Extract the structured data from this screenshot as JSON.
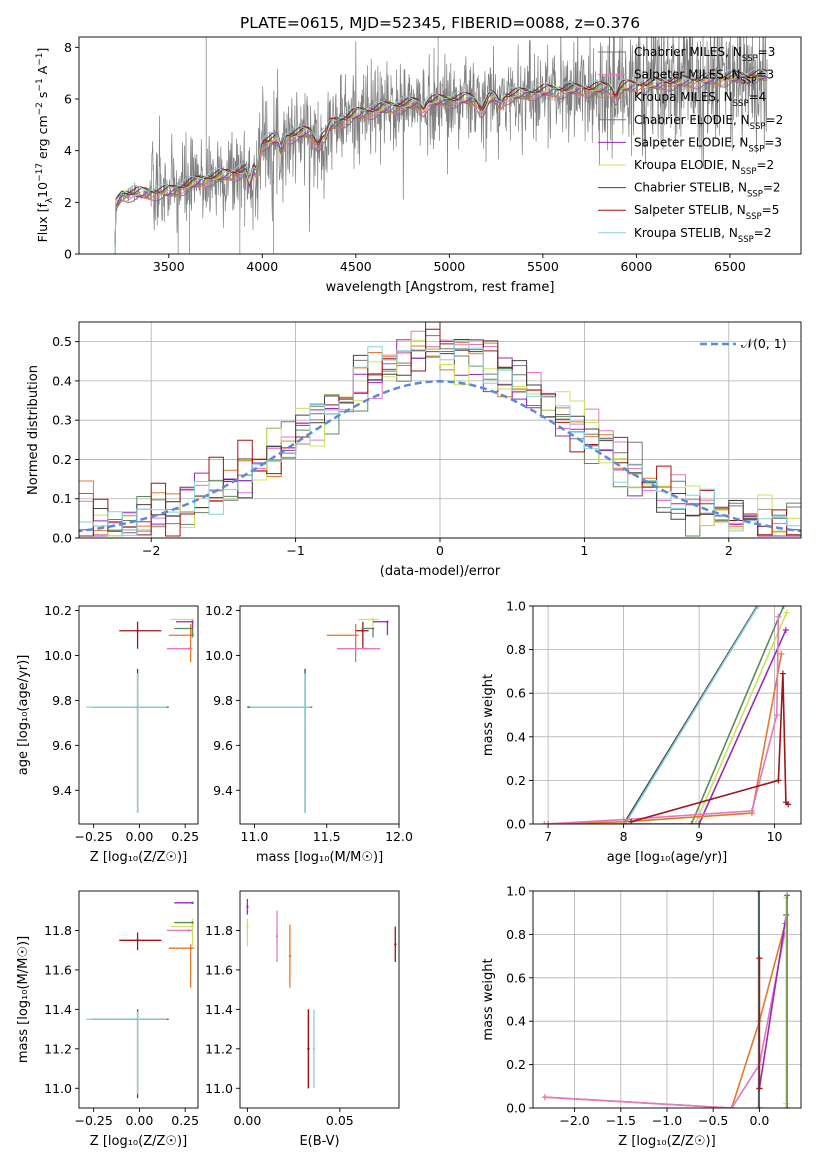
{
  "figure_title": "PLATE=0615, MJD=52345, FIBERID=0088, z=0.376",
  "palette": {
    "Chabrier MILES": "#777777",
    "Salpeter MILES": "#e377c2",
    "Kroupa MILES": "#e07a2a",
    "Chabrier ELODIE": "#5c8a5c",
    "Salpeter ELODIE": "#9a2ab8",
    "Kroupa ELODIE": "#cfe05a",
    "Chabrier STELIB": "#444444",
    "Salpeter STELIB": "#a01515",
    "Kroupa STELIB": "#86d2de",
    "normal": "#5b8bd6"
  },
  "chart_data": [
    {
      "type": "line",
      "title": "PLATE=0615, MJD=52345, FIBERID=0088, z=0.376",
      "xlabel": "wavelength [Angstrom, rest frame]",
      "ylabel": "Flux [f$_\\lambda$10$^{-17}$ erg cm$^{-2}$ s$^{-1}$ A$^{-1}$]",
      "ylabel_parts": [
        "Flux [f",
        "λ",
        "10",
        "−17",
        " erg cm",
        "−2",
        " s",
        "−1",
        " A",
        "−1",
        "]"
      ],
      "xlim": [
        3020,
        6880
      ],
      "ylim": [
        0,
        8.4
      ],
      "xticks": [
        3500,
        4000,
        4500,
        5000,
        5500,
        6000,
        6500
      ],
      "yticks": [
        0,
        2,
        4,
        6,
        8
      ],
      "legend_position": "top-right",
      "legend": [
        {
          "model": "Chabrier MILES",
          "nssp": "3"
        },
        {
          "model": "Salpeter MILES",
          "nssp": "3"
        },
        {
          "model": "Kroupa MILES",
          "nssp": "4"
        },
        {
          "model": "Chabrier ELODIE",
          "nssp": "2"
        },
        {
          "model": "Salpeter ELODIE",
          "nssp": "3"
        },
        {
          "model": "Kroupa ELODIE",
          "nssp": "2"
        },
        {
          "model": "Chabrier STELIB",
          "nssp": "2"
        },
        {
          "model": "Salpeter STELIB",
          "nssp": "5"
        },
        {
          "model": "Kroupa STELIB",
          "nssp": "2"
        }
      ],
      "nssp_label": "N",
      "nssp_sub": "SSP",
      "continuum": {
        "x": [
          3200,
          3250,
          3500,
          3700,
          3900,
          4000,
          4100,
          4300,
          4500,
          4700,
          4900,
          5100,
          5300,
          5500,
          5800,
          6000,
          6300,
          6500,
          6700
        ],
        "y": [
          1.7,
          2.3,
          2.4,
          2.9,
          3.2,
          4.3,
          4.5,
          4.8,
          5.4,
          5.7,
          5.9,
          6.0,
          6.1,
          6.3,
          6.4,
          6.5,
          6.7,
          6.8,
          6.9
        ]
      }
    },
    {
      "type": "histogram",
      "xlabel": "(data-model)/error",
      "ylabel": "Normed distribution",
      "xlim": [
        -2.5,
        2.5
      ],
      "ylim": [
        0,
        0.55
      ],
      "xticks": [
        -2,
        -1,
        0,
        1,
        2
      ],
      "yticks": [
        0,
        0.1,
        0.2,
        0.3,
        0.4,
        0.5
      ],
      "legend_position": "top-right",
      "legend_label": "𝒩(0, 1)",
      "bin_width": 0.1
    },
    {
      "type": "scatter",
      "xlabel": "Z [log₁₀(Z/Z☉)]",
      "ylabel": "age  [log₁₀(age/yr)]",
      "xlim": [
        -0.33,
        0.32
      ],
      "ylim": [
        9.25,
        10.22
      ],
      "xticks": [
        -0.25,
        0.0,
        0.25
      ],
      "xtick_labels": [
        "−0.25",
        "0.00",
        "0.25"
      ],
      "yticks": [
        9.4,
        9.6,
        9.8,
        10.0,
        10.2
      ],
      "ytick_labels": [
        "9.4",
        "9.6",
        "9.8",
        "10.0",
        "10.2"
      ],
      "points": [
        {
          "model": "Chabrier STELIB",
          "x": -0.01,
          "y": 9.77,
          "xerr": [
            0.25,
            0.17
          ],
          "yerr": [
            0.47,
            0.17
          ]
        },
        {
          "model": "Kroupa STELIB",
          "x": -0.01,
          "y": 9.77,
          "xerr": [
            0.28,
            0.16
          ],
          "yerr": [
            0.47,
            0.15
          ]
        },
        {
          "model": "Salpeter STELIB",
          "x": -0.01,
          "y": 10.11,
          "xerr": [
            0.1,
            0.13
          ],
          "yerr": [
            0.08,
            0.04
          ]
        },
        {
          "model": "Kroupa ELODIE",
          "x": 0.29,
          "y": 10.16,
          "xerr": [
            0.12,
            0.0
          ],
          "yerr": [
            0.03,
            0.0
          ]
        },
        {
          "model": "Salpeter ELODIE",
          "x": 0.29,
          "y": 10.15,
          "xerr": [
            0.09,
            0.0
          ],
          "yerr": [
            0.06,
            0.0
          ]
        },
        {
          "model": "Kroupa MILES",
          "x": 0.28,
          "y": 10.09,
          "xerr": [
            0.12,
            0.02
          ],
          "yerr": [
            0.12,
            0.05
          ]
        },
        {
          "model": "Salpeter MILES",
          "x": 0.27,
          "y": 10.03,
          "xerr": [
            0.12,
            0.02
          ],
          "yerr": [
            0.0,
            0.0
          ]
        },
        {
          "model": "Chabrier ELODIE",
          "x": 0.29,
          "y": 10.12,
          "xerr": [
            0.1,
            0.0
          ],
          "yerr": [
            0.04,
            0.0
          ]
        }
      ]
    },
    {
      "type": "scatter",
      "xlabel": "mass [log₁₀(M/M☉)]",
      "xlim": [
        10.9,
        12.0
      ],
      "ylim": [
        9.25,
        10.22
      ],
      "xticks": [
        11.0,
        11.5,
        12.0
      ],
      "xtick_labels": [
        "11.0",
        "11.5",
        "12.0"
      ],
      "yticks": [
        9.4,
        9.6,
        9.8,
        10.0,
        10.2
      ],
      "ytick_labels": [
        "9.4",
        "9.6",
        "9.8",
        "10.0",
        "10.2"
      ],
      "points": [
        {
          "model": "Chabrier STELIB",
          "x": 11.35,
          "y": 9.77,
          "xerr": [
            0.4,
            0.05
          ],
          "yerr": [
            0.47,
            0.17
          ]
        },
        {
          "model": "Kroupa STELIB",
          "x": 11.35,
          "y": 9.77,
          "xerr": [
            0.38,
            0.04
          ],
          "yerr": [
            0.47,
            0.15
          ]
        },
        {
          "model": "Salpeter STELIB",
          "x": 11.75,
          "y": 10.11,
          "xerr": [
            0.05,
            0.04
          ],
          "yerr": [
            0.08,
            0.04
          ]
        },
        {
          "model": "Kroupa ELODIE",
          "x": 11.82,
          "y": 10.16,
          "xerr": [
            0.1,
            0.04
          ],
          "yerr": [
            0.03,
            0.0
          ]
        },
        {
          "model": "Salpeter ELODIE",
          "x": 11.92,
          "y": 10.15,
          "xerr": [
            0.1,
            0.0
          ],
          "yerr": [
            0.06,
            0.0
          ]
        },
        {
          "model": "Kroupa MILES",
          "x": 11.7,
          "y": 10.09,
          "xerr": [
            0.2,
            0.02
          ],
          "yerr": [
            0.12,
            0.05
          ]
        },
        {
          "model": "Salpeter MILES",
          "x": 11.77,
          "y": 10.03,
          "xerr": [
            0.2,
            0.1
          ],
          "yerr": [
            0.0,
            0.0
          ]
        },
        {
          "model": "Chabrier ELODIE",
          "x": 11.82,
          "y": 10.12,
          "xerr": [
            0.08,
            0.0
          ],
          "yerr": [
            0.04,
            0.0
          ]
        }
      ]
    },
    {
      "type": "line",
      "xlabel": "age  [log₁₀(age/yr)]",
      "ylabel": "mass weight",
      "xlim": [
        6.8,
        10.35
      ],
      "ylim": [
        0,
        1.0
      ],
      "xticks": [
        7,
        8,
        9,
        10
      ],
      "yticks": [
        0,
        0.2,
        0.4,
        0.6,
        0.8,
        1.0
      ],
      "ytick_labels": [
        "0.0",
        "0.2",
        "0.4",
        "0.6",
        "0.8",
        "1.0"
      ],
      "series": [
        {
          "model": "Chabrier STELIB",
          "x": [
            8.0,
            9.77
          ],
          "y": [
            0.0,
            1.0
          ]
        },
        {
          "model": "Kroupa STELIB",
          "x": [
            8.02,
            9.78
          ],
          "y": [
            0.0,
            1.0
          ]
        },
        {
          "model": "Chabrier ELODIE",
          "x": [
            8.9,
            10.12
          ],
          "y": [
            0.0,
            1.0
          ]
        },
        {
          "model": "Kroupa ELODIE",
          "x": [
            8.95,
            10.16
          ],
          "y": [
            0.0,
            0.97
          ]
        },
        {
          "model": "Salpeter ELODIE",
          "x": [
            7.0,
            9.0,
            10.15
          ],
          "y": [
            0.0,
            0.0,
            0.89
          ]
        },
        {
          "model": "Kroupa MILES",
          "x": [
            7.0,
            8.0,
            9.7,
            10.09
          ],
          "y": [
            0.0,
            0.01,
            0.05,
            0.78
          ]
        },
        {
          "model": "Salpeter MILES",
          "x": [
            6.95,
            8.0,
            9.7,
            10.03,
            10.05
          ],
          "y": [
            0.0,
            0.02,
            0.06,
            0.5,
            0.95
          ]
        },
        {
          "model": "Salpeter STELIB",
          "x": [
            8.1,
            10.05,
            10.11,
            10.15,
            10.18
          ],
          "y": [
            0.01,
            0.2,
            0.69,
            0.1,
            0.09
          ]
        }
      ]
    },
    {
      "type": "scatter",
      "xlabel": "Z [log₁₀(Z/Z☉)]",
      "ylabel": "mass [log₁₀(M/M☉)]",
      "xlim": [
        -0.33,
        0.32
      ],
      "ylim": [
        10.9,
        12.0
      ],
      "xticks": [
        -0.25,
        0.0,
        0.25
      ],
      "xtick_labels": [
        "−0.25",
        "0.00",
        "0.25"
      ],
      "yticks": [
        11.0,
        11.2,
        11.4,
        11.6,
        11.8
      ],
      "ytick_labels": [
        "11.0",
        "11.2",
        "11.4",
        "11.6",
        "11.8"
      ],
      "points": [
        {
          "model": "Chabrier STELIB",
          "x": -0.01,
          "y": 11.35,
          "xerr": [
            0.25,
            0.17
          ],
          "yerr": [
            0.4,
            0.05
          ]
        },
        {
          "model": "Kroupa STELIB",
          "x": -0.01,
          "y": 11.35,
          "xerr": [
            0.28,
            0.16
          ],
          "yerr": [
            0.38,
            0.04
          ]
        },
        {
          "model": "Salpeter STELIB",
          "x": -0.01,
          "y": 11.75,
          "xerr": [
            0.1,
            0.13
          ],
          "yerr": [
            0.05,
            0.04
          ]
        },
        {
          "model": "Salpeter ELODIE",
          "x": 0.29,
          "y": 11.94,
          "xerr": [
            0.1,
            0.0
          ],
          "yerr": [
            0.0,
            0.0
          ]
        },
        {
          "model": "Kroupa ELODIE",
          "x": 0.29,
          "y": 11.82,
          "xerr": [
            0.12,
            0.0
          ],
          "yerr": [
            0.1,
            0.04
          ]
        },
        {
          "model": "Salpeter MILES",
          "x": 0.27,
          "y": 11.8,
          "xerr": [
            0.12,
            0.02
          ],
          "yerr": [
            0.0,
            0.0
          ]
        },
        {
          "model": "Kroupa MILES",
          "x": 0.28,
          "y": 11.71,
          "xerr": [
            0.12,
            0.02
          ],
          "yerr": [
            0.2,
            0.02
          ]
        },
        {
          "model": "Chabrier ELODIE",
          "x": 0.29,
          "y": 11.84,
          "xerr": [
            0.1,
            0.0
          ],
          "yerr": [
            0.0,
            0.0
          ]
        }
      ]
    },
    {
      "type": "scatter",
      "xlabel": "E(B-V)",
      "xlim": [
        -0.004,
        0.082
      ],
      "ylim": [
        10.9,
        12.0
      ],
      "xticks": [
        0.0,
        0.05
      ],
      "xtick_labels": [
        "0.00",
        "0.05"
      ],
      "yticks": [
        11.0,
        11.2,
        11.4,
        11.6,
        11.8
      ],
      "ytick_labels": [
        "11.0",
        "11.2",
        "11.4",
        "11.6",
        "11.8"
      ],
      "points": [
        {
          "model": "Salpeter ELODIE",
          "x": 0.0,
          "y": 11.92,
          "yerr": [
            0.04,
            0.04
          ]
        },
        {
          "model": "Kroupa ELODIE",
          "x": 0.0,
          "y": 11.82,
          "yerr": [
            0.1,
            0.04
          ]
        },
        {
          "model": "Salpeter MILES",
          "x": 0.016,
          "y": 11.77,
          "yerr": [
            0.13,
            0.13
          ]
        },
        {
          "model": "Kroupa MILES",
          "x": 0.023,
          "y": 11.67,
          "yerr": [
            0.16,
            0.16
          ]
        },
        {
          "model": "Chabrier STELIB",
          "x": 0.033,
          "y": 11.2,
          "yerr": [
            0.2,
            0.2
          ]
        },
        {
          "model": "Salpeter STELIB",
          "x": 0.033,
          "y": 11.2,
          "yerr": [
            0.2,
            0.2
          ]
        },
        {
          "model": "Kroupa STELIB",
          "x": 0.036,
          "y": 11.2,
          "yerr": [
            0.2,
            0.2
          ]
        },
        {
          "model": "Salpeter STELIB",
          "x": 0.08,
          "y": 11.73,
          "yerr": [
            0.09,
            0.09
          ]
        }
      ]
    },
    {
      "type": "line",
      "xlabel": "Z [log₁₀(Z/Z☉)]",
      "ylabel": "mass weight",
      "xlim": [
        -2.45,
        0.45
      ],
      "ylim": [
        0,
        1.0
      ],
      "xticks": [
        -2.0,
        -1.5,
        -1.0,
        -0.5,
        0.0
      ],
      "xtick_labels": [
        "−2.0",
        "−1.5",
        "−1.0",
        "−0.5",
        "0.0"
      ],
      "yticks": [
        0,
        0.2,
        0.4,
        0.6,
        0.8,
        1.0
      ],
      "ytick_labels": [
        "0.0",
        "0.2",
        "0.4",
        "0.6",
        "0.8",
        "1.0"
      ],
      "series": [
        {
          "model": "Kroupa MILES",
          "x": [
            -2.32,
            -0.3,
            0.0,
            0.28
          ],
          "y": [
            0.05,
            0.0,
            0.4,
            0.85
          ]
        },
        {
          "model": "Salpeter MILES",
          "x": [
            -2.32,
            -0.3,
            0.0,
            0.27
          ],
          "y": [
            0.05,
            0.0,
            0.2,
            0.8
          ]
        },
        {
          "model": "Salpeter ELODIE",
          "x": [
            0.0,
            0.29
          ],
          "y": [
            0.09,
            0.89
          ]
        },
        {
          "model": "Kroupa STELIB",
          "x": [
            -0.01,
            -0.01
          ],
          "y": [
            0.0,
            1.0
          ]
        },
        {
          "model": "Chabrier STELIB",
          "x": [
            -0.005,
            -0.005
          ],
          "y": [
            0.0,
            1.0
          ]
        },
        {
          "model": "Kroupa ELODIE",
          "x": [
            0.29,
            0.29
          ],
          "y": [
            0.02,
            0.97
          ]
        },
        {
          "model": "Chabrier ELODIE",
          "x": [
            0.3,
            0.3
          ],
          "y": [
            0.0,
            0.98
          ]
        },
        {
          "model": "Salpeter STELIB",
          "x": [
            0.0,
            0.0
          ],
          "y": [
            0.09,
            0.69
          ]
        }
      ]
    }
  ]
}
